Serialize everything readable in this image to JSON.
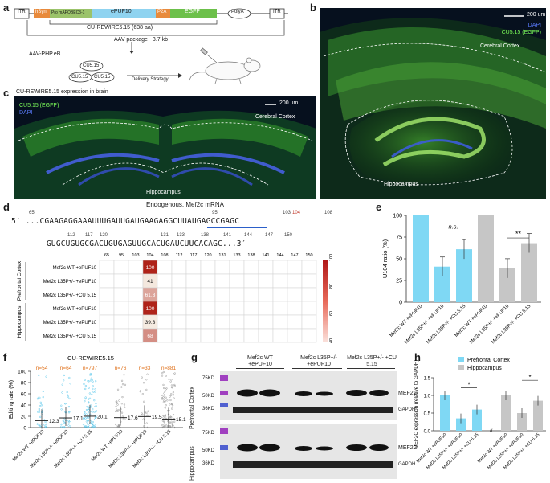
{
  "panels": [
    "a",
    "b",
    "c",
    "d",
    "e",
    "f",
    "g",
    "h"
  ],
  "panel_a": {
    "itr_left": "ITR",
    "hsyn": "hSyn",
    "promoter": "Pro mAPOBEC3-1",
    "epuf": "ePUF10",
    "p2a": "P2A",
    "egfp": "EGFP",
    "polya": "PolyA",
    "itr_right": "ITR",
    "construct": "CU-REWIRE5.15 (638 aa)",
    "package": "AAV package ~3.7 kb",
    "vector": "AAV-PHP.eB",
    "cu1": "CU5.15",
    "cu2": "CU5.15",
    "cu3": "CU5.15",
    "delivery": "Delivery Strategy"
  },
  "panel_b": {
    "scale": "200 um",
    "legend_dapi": "DAPI",
    "legend_egfp": "CU5.15 (EGFP)",
    "cortex": "Cerebral Cortex",
    "hippo": "Hippocampus"
  },
  "panel_c": {
    "title": "CU-REWIRE5.15 expression in brain",
    "legend_egfp": "CU5.15 (EGFP)",
    "legend_dapi": "DAPI",
    "scale": "200 um",
    "cortex": "Cerebral Cortex",
    "hippo": "Hippocampus"
  },
  "panel_d": {
    "title": "Endogenous, Mef2c mRNA",
    "line1_prefix": "5′ ...",
    "line1": "CGAAGAGGAAAUUUGAUUGAUGAAGAGGCUUAUGAGCCGAGC",
    "line2": "GUGCUGUGCGACUGUGAGUUGCACUGAUCUUCACAGC...3′",
    "line1_nums": [
      "65",
      "95",
      "103",
      "104",
      "108"
    ],
    "line2_nums": [
      "112",
      "117",
      "120",
      "131",
      "133",
      "138",
      "141",
      "144",
      "147",
      "150"
    ],
    "columns": [
      "65",
      "95",
      "103",
      "104",
      "108",
      "112",
      "117",
      "120",
      "131",
      "133",
      "138",
      "141",
      "144",
      "147",
      "150"
    ],
    "group_prefrontal": "Prefrontal Cortex",
    "group_hippo": "Hippocampus",
    "rows": [
      {
        "label": "Mef2c WT +ePUF10",
        "value": "100"
      },
      {
        "label": "Mef2c L35P+/- +ePUF10",
        "value": "41"
      },
      {
        "label": "Mef2c L35P+/- +CU 5.15",
        "value": "61.3"
      },
      {
        "label": "Mef2c WT +ePUF10",
        "value": "100"
      },
      {
        "label": "Mef2c L35P+/- +ePUF10",
        "value": "39.3"
      },
      {
        "label": "Mef2c L35P+/- +CU 5.15",
        "value": "68"
      }
    ],
    "colorbar_ticks": [
      "100",
      "80",
      "60",
      "40"
    ]
  },
  "panel_e": {
    "ylabel": "U104 ratio (%)",
    "yticks": [
      "0",
      "25",
      "50",
      "75",
      "100"
    ],
    "bars": [
      {
        "label": "Mef2c WT +ePUF10",
        "value": 100,
        "color": "#7fd8f4"
      },
      {
        "label": "Mef2c L35P+/- +ePUF10",
        "value": 41,
        "color": "#7fd8f4"
      },
      {
        "label": "Mef2c L35P+/- +CU 5.15",
        "value": 61,
        "color": "#7fd8f4"
      },
      {
        "label": "Mef2c WT +ePUF10",
        "value": 100,
        "color": "#c6c6c6"
      },
      {
        "label": "Mef2c L35P+/- +ePUF10",
        "value": 39,
        "color": "#c6c6c6"
      },
      {
        "label": "Mef2c L35P+/- +CU 5.15",
        "value": 68,
        "color": "#c6c6c6"
      }
    ],
    "sig1": "n.s.",
    "sig2": "**"
  },
  "panel_f": {
    "title": "CU-REWIRE5.15",
    "ylabel": "Editing rate (%)",
    "yticks": [
      "0",
      "20",
      "40",
      "60",
      "80",
      "100"
    ],
    "groups": [
      {
        "label": "Mef2c WT +ePUF10",
        "n": "n=54",
        "mean": "12.3",
        "mean_v": 12.3,
        "color": "#5bc8ec"
      },
      {
        "label": "Mef2c L35P+/- +ePUF10",
        "n": "n=64",
        "mean": "17.1",
        "mean_v": 17.1,
        "color": "#5bc8ec"
      },
      {
        "label": "Mef2c L35P+/- +CU 5.15",
        "n": "n=797",
        "mean": "20.1",
        "mean_v": 20.1,
        "color": "#5bc8ec"
      },
      {
        "label": "Mef2c WT +ePUF10",
        "n": "n=76",
        "mean": "17.6",
        "mean_v": 17.6,
        "color": "#9a9a9a"
      },
      {
        "label": "Mef2c L35P+/- +ePUF10",
        "n": "n=33",
        "mean": "19.5",
        "mean_v": 19.5,
        "color": "#9a9a9a"
      },
      {
        "label": "Mef2c L35P+/- +CU 5.15",
        "n": "n=881",
        "mean": "15.1",
        "mean_v": 15.1,
        "color": "#9a9a9a"
      }
    ]
  },
  "panel_g": {
    "col1": "Mef2c WT +ePUF10",
    "col2": "Mef2c L35P+/- +ePUF10",
    "col3": "Mef2c L35P+/- +CU 5.15",
    "row_prefrontal": "Prefrontal Cortex",
    "row_hippo": "Hippocampus",
    "mw": [
      "75KD",
      "50KD",
      "36KD"
    ],
    "bands": [
      "MEF2C",
      "GAPDH"
    ]
  },
  "panel_h": {
    "legend_pfc": "Prefrontal Cortex",
    "legend_hippo": "Hippocampus",
    "ylabel": "MEF2C expression (relative to GAPDH)",
    "yticks": [
      "0.0",
      "0.5",
      "1.0",
      "1.5"
    ],
    "bars": [
      {
        "label": "Mef2c WT +ePUF10",
        "value": 1.0,
        "color": "#7fd8f4"
      },
      {
        "label": "Mef2c L35P+/- +ePUF10",
        "value": 0.35,
        "color": "#7fd8f4"
      },
      {
        "label": "Mef2c L35P+/- +CU 5.15",
        "value": 0.6,
        "color": "#7fd8f4"
      },
      {
        "label": "Mef2c WT +ePUF10",
        "value": 1.0,
        "color": "#c6c6c6"
      },
      {
        "label": "Mef2c L35P+/- +ePUF10",
        "value": 0.5,
        "color": "#c6c6c6"
      },
      {
        "label": "Mef2c L35P+/- +CU 5.15",
        "value": 0.85,
        "color": "#c6c6c6"
      }
    ],
    "sig": "*"
  },
  "chart_data": [
    {
      "type": "bar",
      "categories": [
        "Mef2c WT +ePUF10",
        "Mef2c L35P+/- +ePUF10",
        "Mef2c L35P+/- +CU 5.15",
        "Mef2c WT +ePUF10",
        "Mef2c L35P+/- +ePUF10",
        "Mef2c L35P+/- +CU 5.15"
      ],
      "values": [
        100,
        41,
        61,
        100,
        39,
        68
      ],
      "ylabel": "U104 ratio (%)",
      "ylim": [
        0,
        100
      ]
    },
    {
      "type": "scatter",
      "categories": [
        "Mef2c WT +ePUF10",
        "Mef2c L35P+/- +ePUF10",
        "Mef2c L35P+/- +CU 5.15",
        "Mef2c WT +ePUF10",
        "Mef2c L35P+/- +ePUF10",
        "Mef2c L35P+/- +CU 5.15"
      ],
      "values": [
        12.3,
        17.1,
        20.1,
        17.6,
        19.5,
        15.1
      ],
      "title": "CU-REWIRE5.15",
      "ylabel": "Editing rate (%)",
      "ylim": [
        0,
        100
      ]
    },
    {
      "type": "bar",
      "categories": [
        "Mef2c WT +ePUF10",
        "Mef2c L35P+/- +ePUF10",
        "Mef2c L35P+/- +CU 5.15",
        "Mef2c WT +ePUF10",
        "Mef2c L35P+/- +ePUF10",
        "Mef2c L35P+/- +CU 5.15"
      ],
      "values": [
        1.0,
        0.35,
        0.6,
        1.0,
        0.5,
        0.85
      ],
      "ylabel": "MEF2C expression (relative to GAPDH)",
      "ylim": [
        0,
        1.5
      ]
    }
  ]
}
